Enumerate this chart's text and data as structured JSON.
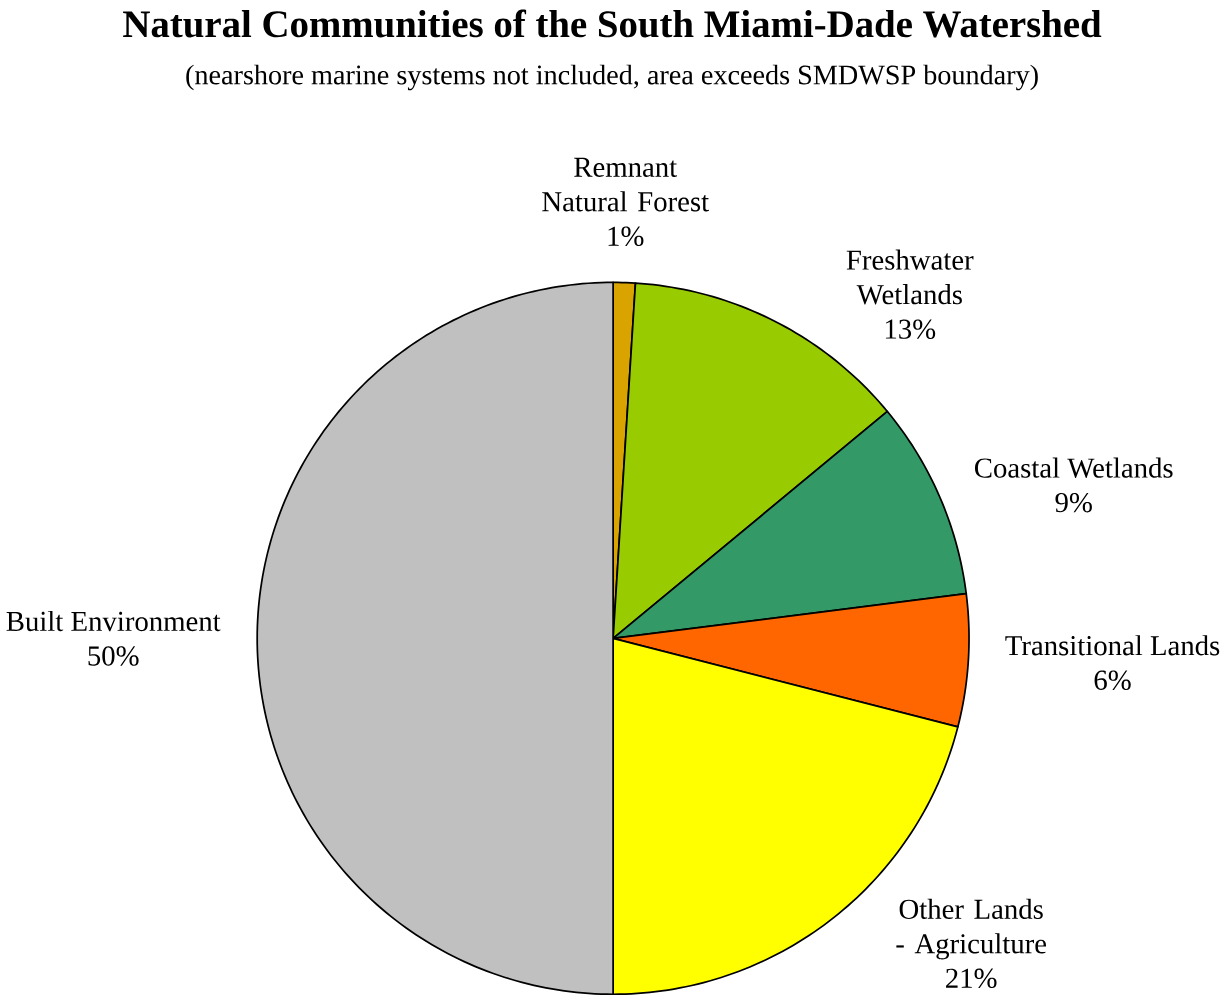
{
  "chart_data": {
    "type": "pie",
    "title": "Natural Communities of the South Miami-Dade Watershed",
    "subtitle": "(nearshore marine systems not included, area exceeds SMDWSP boundary)",
    "categories": [
      "Remnant Natural Forest",
      "Freshwater Wetlands",
      "Coastal Wetlands",
      "Transitional Lands",
      "Other Lands - Agriculture",
      "Built Environment"
    ],
    "values": [
      1,
      13,
      9,
      6,
      21,
      50
    ],
    "value_labels": [
      "1%",
      "13%",
      "9%",
      "6%",
      "21%",
      "50%"
    ],
    "colors": [
      "#d9a400",
      "#99cc00",
      "#339966",
      "#ff6600",
      "#ffff00",
      "#c0c0c0"
    ]
  }
}
